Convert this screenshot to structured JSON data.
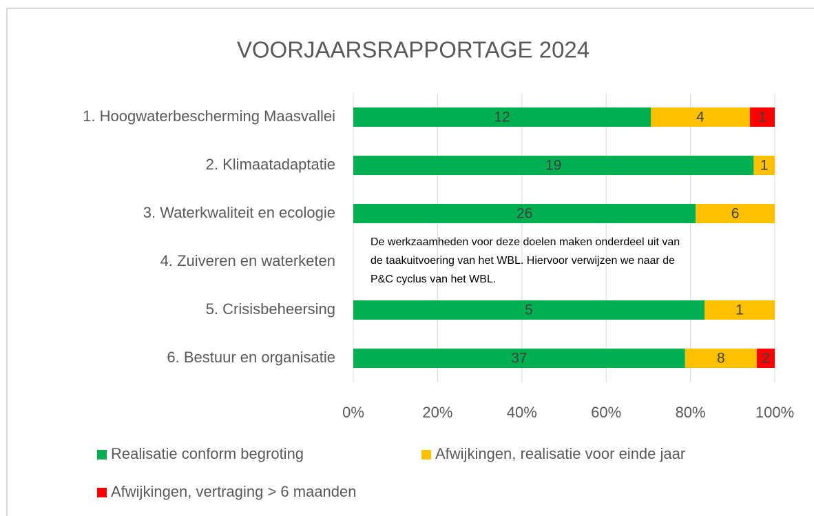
{
  "chart_data": {
    "type": "stacked_bar_horizontal_percent",
    "title": "VOORJAARSRAPPORTAGE 2024",
    "categories": [
      "1. Hoogwaterbescherming Maasvallei",
      "2. Klimaatadaptatie",
      "3. Waterkwaliteit en ecologie",
      "4. Zuiveren en waterketen",
      "5. Crisisbeheersing",
      "6. Bestuur en organisatie"
    ],
    "series": [
      {
        "name": "Realisatie conform begroting",
        "color": "#00b050",
        "values": [
          12,
          19,
          26,
          null,
          5,
          37
        ]
      },
      {
        "name": "Afwijkingen, realisatie voor einde jaar",
        "color": "#ffc000",
        "values": [
          4,
          1,
          6,
          null,
          1,
          8
        ]
      },
      {
        "name": "Afwijkingen, vertraging > 6 maanden",
        "color": "#ff0000",
        "values": [
          1,
          null,
          null,
          null,
          null,
          2
        ]
      }
    ],
    "xlim": [
      0,
      100
    ],
    "xticks": [
      {
        "value": 0,
        "label": "0%"
      },
      {
        "value": 20,
        "label": "20%"
      },
      {
        "value": 40,
        "label": "40%"
      },
      {
        "value": 60,
        "label": "60%"
      },
      {
        "value": 80,
        "label": "80%"
      },
      {
        "value": 100,
        "label": "100%"
      }
    ],
    "grid": true,
    "annotation": [
      "De werkzaamheden voor deze doelen maken onderdeel uit van",
      "de taakuitvoering van het WBL. Hiervoor verwijzen we naar de",
      "P&C cyclus van het WBL."
    ]
  }
}
